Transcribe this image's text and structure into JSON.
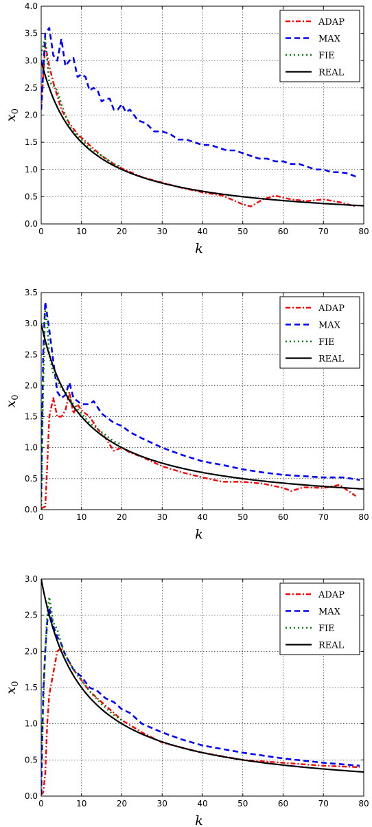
{
  "chart_data": [
    {
      "type": "line",
      "xlabel": "k",
      "ylabel": "x_0",
      "xlim": [
        0,
        80
      ],
      "ylim": [
        0,
        4.0
      ],
      "xticks": [
        "0",
        "10",
        "20",
        "30",
        "40",
        "50",
        "60",
        "70",
        "80"
      ],
      "yticks": [
        "0.0",
        "0.5",
        "1.0",
        "1.5",
        "2.0",
        "2.5",
        "3.0",
        "3.5",
        "4.0"
      ],
      "grid": true,
      "legend": "top-right",
      "series": [
        {
          "name": "ADAP",
          "color": "#ff0000",
          "style": "dashdot",
          "x": [
            0,
            1,
            2,
            3,
            5,
            7,
            9,
            12,
            15,
            18,
            20,
            25,
            30,
            35,
            40,
            45,
            50,
            52,
            55,
            58,
            62,
            66,
            70,
            74,
            78
          ],
          "y": [
            2.1,
            3.3,
            2.9,
            2.6,
            2.1,
            1.85,
            1.65,
            1.45,
            1.25,
            1.1,
            1.02,
            0.86,
            0.76,
            0.66,
            0.58,
            0.52,
            0.36,
            0.32,
            0.45,
            0.52,
            0.45,
            0.42,
            0.45,
            0.4,
            0.32
          ]
        },
        {
          "name": "MAX",
          "color": "#0000ff",
          "style": "dashed",
          "x": [
            0,
            1,
            2,
            3,
            4,
            5,
            6,
            7,
            8,
            9,
            10,
            11,
            12,
            13,
            14,
            15,
            16,
            17,
            18,
            19,
            20,
            21,
            22,
            24,
            26,
            28,
            30,
            32,
            34,
            36,
            38,
            40,
            42,
            44,
            46,
            48,
            50,
            52,
            54,
            56,
            58,
            60,
            62,
            64,
            66,
            68,
            70,
            72,
            74,
            76,
            78
          ],
          "y": [
            2.1,
            3.5,
            3.6,
            3.1,
            3.0,
            3.4,
            2.9,
            3.0,
            3.05,
            2.7,
            2.75,
            2.7,
            2.45,
            2.5,
            2.45,
            2.25,
            2.3,
            2.3,
            2.1,
            2.1,
            2.2,
            2.05,
            2.1,
            1.9,
            1.85,
            1.7,
            1.7,
            1.65,
            1.55,
            1.55,
            1.5,
            1.45,
            1.45,
            1.4,
            1.35,
            1.35,
            1.3,
            1.25,
            1.2,
            1.2,
            1.15,
            1.15,
            1.1,
            1.1,
            1.05,
            1.0,
            1.0,
            0.95,
            0.95,
            0.93,
            0.87
          ]
        },
        {
          "name": "FIE",
          "color": "#007f00",
          "style": "dotted",
          "x": [
            0,
            0.5,
            1,
            2,
            3,
            4,
            5,
            6,
            7,
            8,
            10,
            12,
            15,
            18,
            20
          ],
          "y": [
            3.1,
            3.3,
            3.4,
            2.6,
            2.55,
            2.45,
            2.2,
            2.0,
            1.8,
            1.7,
            1.55,
            1.4,
            1.25,
            1.1,
            1.05
          ]
        },
        {
          "name": "REAL",
          "color": "#000000",
          "style": "solid",
          "func": "3/(1+0.1*k)"
        }
      ]
    },
    {
      "type": "line",
      "xlabel": "k",
      "ylabel": "x_0",
      "xlim": [
        0,
        80
      ],
      "ylim": [
        0,
        3.5
      ],
      "xticks": [
        "0",
        "10",
        "20",
        "30",
        "40",
        "50",
        "60",
        "70",
        "80"
      ],
      "yticks": [
        "0.0",
        "0.5",
        "1.0",
        "1.5",
        "2.0",
        "2.5",
        "3.0",
        "3.5"
      ],
      "grid": true,
      "legend": "top-right",
      "series": [
        {
          "name": "ADAP",
          "color": "#ff0000",
          "style": "dashdot",
          "x": [
            0,
            1,
            1.5,
            2,
            3,
            4,
            5,
            6,
            7,
            8,
            9,
            10,
            12,
            14,
            16,
            18,
            20,
            22,
            25,
            30,
            35,
            40,
            45,
            50,
            55,
            60,
            62,
            65,
            70,
            74,
            78
          ],
          "y": [
            0.02,
            0.05,
            0.7,
            1.5,
            1.8,
            1.5,
            1.5,
            1.6,
            1.9,
            1.55,
            1.7,
            1.6,
            1.5,
            1.3,
            1.15,
            0.95,
            1.0,
            0.92,
            0.85,
            0.7,
            0.6,
            0.52,
            0.45,
            0.45,
            0.42,
            0.35,
            0.3,
            0.36,
            0.35,
            0.4,
            0.22
          ]
        },
        {
          "name": "MAX",
          "color": "#0000ff",
          "style": "dashed",
          "x": [
            0,
            0.5,
            1,
            2,
            3,
            4,
            5,
            6,
            7,
            8,
            10,
            12,
            13,
            15,
            18,
            20,
            22,
            25,
            30,
            35,
            40,
            45,
            50,
            55,
            60,
            65,
            70,
            75,
            79
          ],
          "y": [
            0.2,
            2.5,
            3.35,
            2.9,
            2.4,
            1.9,
            1.8,
            1.85,
            2.05,
            1.8,
            1.7,
            1.7,
            1.75,
            1.55,
            1.4,
            1.35,
            1.25,
            1.15,
            1.0,
            0.88,
            0.78,
            0.72,
            0.65,
            0.6,
            0.56,
            0.54,
            0.52,
            0.52,
            0.48
          ]
        },
        {
          "name": "FIE",
          "color": "#007f00",
          "style": "dotted",
          "x": [
            0,
            0.5,
            1,
            1.5,
            2,
            3,
            4,
            5,
            6,
            8,
            10,
            12,
            15,
            18,
            20
          ],
          "y": [
            0.0,
            2.0,
            3.2,
            3.0,
            2.5,
            2.2,
            2.1,
            1.95,
            1.9,
            1.7,
            1.55,
            1.4,
            1.25,
            1.1,
            1.05
          ]
        },
        {
          "name": "REAL",
          "color": "#000000",
          "style": "solid",
          "func": "3/(1+0.1*k)"
        }
      ]
    },
    {
      "type": "line",
      "xlabel": "k",
      "ylabel": "x_0",
      "xlim": [
        0,
        80
      ],
      "ylim": [
        0,
        3.0
      ],
      "xticks": [
        "0",
        "10",
        "20",
        "30",
        "40",
        "50",
        "60",
        "70",
        "80"
      ],
      "yticks": [
        "0.0",
        "0.5",
        "1.0",
        "1.5",
        "2.0",
        "2.5",
        "3.0"
      ],
      "grid": true,
      "legend": "top-right",
      "series": [
        {
          "name": "ADAP",
          "color": "#ff0000",
          "style": "dashdot",
          "x": [
            0,
            0.5,
            1,
            1.5,
            2,
            3,
            4,
            5,
            6,
            8,
            10,
            12,
            15,
            18,
            20,
            25,
            30,
            40,
            50,
            60,
            70,
            79
          ],
          "y": [
            0.02,
            0.05,
            0.3,
            1.0,
            1.4,
            1.7,
            2.0,
            2.05,
            1.95,
            1.75,
            1.6,
            1.45,
            1.3,
            1.15,
            1.05,
            0.88,
            0.74,
            0.6,
            0.5,
            0.46,
            0.42,
            0.4
          ]
        },
        {
          "name": "MAX",
          "color": "#0000ff",
          "style": "dashed",
          "x": [
            0,
            0.5,
            1,
            1.5,
            2,
            3,
            4,
            5,
            6,
            8,
            10,
            12,
            14,
            16,
            18,
            20,
            22,
            25,
            30,
            35,
            40,
            50,
            60,
            70,
            79
          ],
          "y": [
            0.02,
            1.4,
            2.0,
            2.4,
            2.6,
            2.35,
            2.2,
            2.1,
            1.95,
            1.75,
            1.65,
            1.5,
            1.45,
            1.35,
            1.3,
            1.2,
            1.15,
            1.0,
            0.88,
            0.78,
            0.7,
            0.6,
            0.52,
            0.46,
            0.42
          ]
        },
        {
          "name": "FIE",
          "color": "#007f00",
          "style": "dotted",
          "x": [
            0,
            0.5,
            1,
            1.5,
            2,
            3,
            4,
            5,
            6,
            8,
            10,
            12,
            15,
            18,
            20
          ],
          "y": [
            0.5,
            1.2,
            2.0,
            2.5,
            2.75,
            2.4,
            2.3,
            2.1,
            1.95,
            1.75,
            1.6,
            1.45,
            1.27,
            1.12,
            1.05
          ]
        },
        {
          "name": "REAL",
          "color": "#000000",
          "style": "solid",
          "func": "3/(1+0.1*k)"
        }
      ]
    }
  ]
}
